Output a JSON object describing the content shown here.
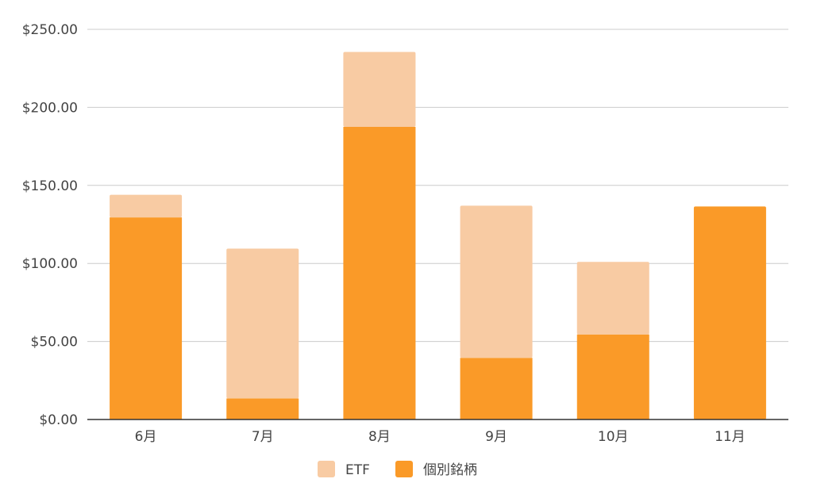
{
  "chart_data": {
    "type": "bar",
    "stacked": true,
    "categories": [
      "6月",
      "7月",
      "8月",
      "9月",
      "10月",
      "11月"
    ],
    "series": [
      {
        "name": "個別銘柄",
        "color": "#FA9A28",
        "values": [
          129.5,
          13.5,
          187.5,
          39.5,
          54.5,
          136.5
        ]
      },
      {
        "name": "ETF",
        "color": "#F8CBA3",
        "values": [
          14.5,
          96,
          48,
          97.5,
          46.5,
          0
        ]
      }
    ],
    "legend_order": [
      "ETF",
      "個別銘柄"
    ],
    "ylim": [
      0,
      250
    ],
    "yticks": [
      0,
      50,
      100,
      150,
      200,
      250
    ],
    "ytick_labels": [
      "$0.00",
      "$50.00",
      "$100.00",
      "$150.00",
      "$200.00",
      "$250.00"
    ],
    "grid": true,
    "legend_position": "bottom"
  }
}
